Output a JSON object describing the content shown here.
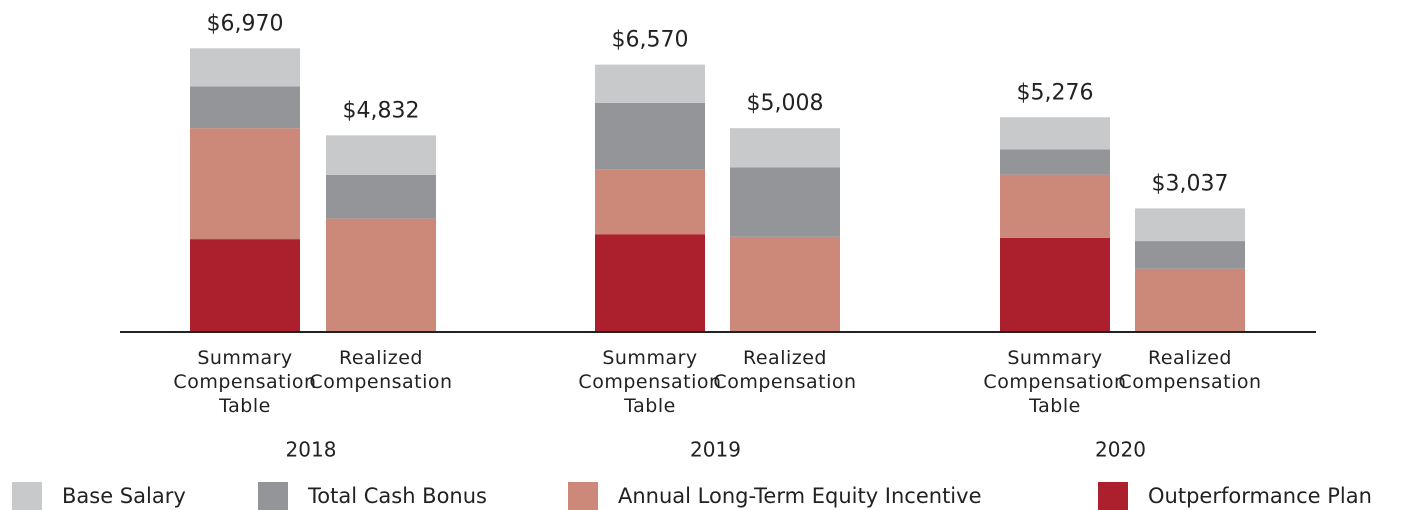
{
  "chart_data": {
    "type": "bar",
    "stacked": true,
    "groups": [
      "2018",
      "2019",
      "2020"
    ],
    "categories": [
      "Summary Compensation Table",
      "Realized Compensation",
      "Summary Compensation Table",
      "Realized Compensation",
      "Summary Compensation Table",
      "Realized Compensation"
    ],
    "series": [
      {
        "name": "Base Salary",
        "color": "#c8c9cb",
        "values": [
          933,
          972,
          939,
          966,
          788,
          803
        ]
      },
      {
        "name": "Total Cash Bonus",
        "color": "#939598",
        "values": [
          1031,
          1074,
          1630,
          1703,
          621,
          678
        ]
      },
      {
        "name": "Annual Long-Term Equity Incentive",
        "color": "#cc8878",
        "values": [
          2724,
          2786,
          1605,
          2339,
          1552,
          1556
        ]
      },
      {
        "name": "Outperformance Plan",
        "color": "#ac1f2d",
        "values": [
          2282,
          null,
          2396,
          null,
          2315,
          null
        ]
      }
    ],
    "totals": [
      6970,
      4832,
      6570,
      5008,
      5276,
      3037
    ],
    "total_labels": [
      "$6,970",
      "$4,832",
      "$6,570",
      "$5,008",
      "$5,276",
      "$3,037"
    ],
    "ylim": [
      0,
      7150
    ]
  }
}
